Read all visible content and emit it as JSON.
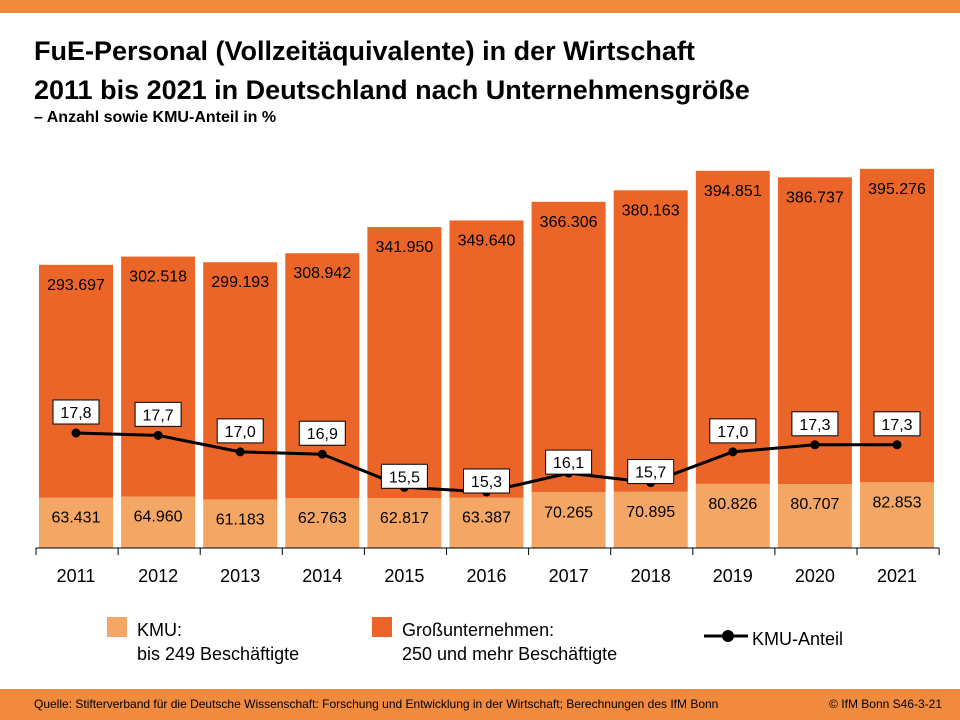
{
  "header": {
    "title_line1": "FuE-Personal (Vollzeitäquivalente) in der Wirtschaft",
    "title_line2": "2011 bis 2021 in Deutschland nach Unternehmensgröße",
    "subtitle": "– Anzahl sowie KMU-Anteil in %"
  },
  "legend": {
    "kmu_line1": "KMU:",
    "kmu_line2": "bis 249 Beschäftigte",
    "gross_line1": "Großunternehmen:",
    "gross_line2": "250 und mehr Beschäftigte",
    "share": "KMU-Anteil"
  },
  "footer": {
    "source": "Quelle: Stifterverband für die Deutsche Wissenschaft: Forschung und Entwicklung in der Wirtschaft; Berechnungen des IfM Bonn",
    "copyright": "© IfM Bonn S46-3-21"
  },
  "colors": {
    "kmu": "#f4a765",
    "gross": "#ec6528",
    "line": "#000000",
    "accent_bar": "#f08a3e"
  },
  "chart_data": {
    "type": "bar",
    "stacked": true,
    "categories": [
      "2011",
      "2012",
      "2013",
      "2014",
      "2015",
      "2016",
      "2017",
      "2018",
      "2019",
      "2020",
      "2021"
    ],
    "series": [
      {
        "name": "KMU: bis 249 Beschäftigte",
        "values": [
          63431,
          64960,
          61183,
          62763,
          62817,
          63387,
          70265,
          70895,
          80826,
          80707,
          82853
        ],
        "labels": [
          "63.431",
          "64.960",
          "61.183",
          "62.763",
          "62.817",
          "63.387",
          "70.265",
          "70.895",
          "80.826",
          "80.707",
          "82.853"
        ]
      },
      {
        "name": "Großunternehmen: 250 und mehr Beschäftigte",
        "values": [
          293697,
          302518,
          299193,
          308942,
          341950,
          349640,
          366306,
          380163,
          394851,
          386737,
          395276
        ],
        "labels": [
          "293.697",
          "302.518",
          "299.193",
          "308.942",
          "341.950",
          "349.640",
          "366.306",
          "380.163",
          "394.851",
          "386.737",
          "395.276"
        ]
      }
    ],
    "line": {
      "name": "KMU-Anteil",
      "values": [
        17.8,
        17.7,
        17.0,
        16.9,
        15.5,
        15.3,
        16.1,
        15.7,
        17.0,
        17.3,
        17.3
      ],
      "labels": [
        "17,8",
        "17,7",
        "17,0",
        "16,9",
        "15,5",
        "15,3",
        "16,1",
        "15,7",
        "17,0",
        "17,3",
        "17,3"
      ]
    },
    "ylim": [
      0,
      480000
    ],
    "line_ylim": [
      10,
      25
    ],
    "grid": false
  }
}
